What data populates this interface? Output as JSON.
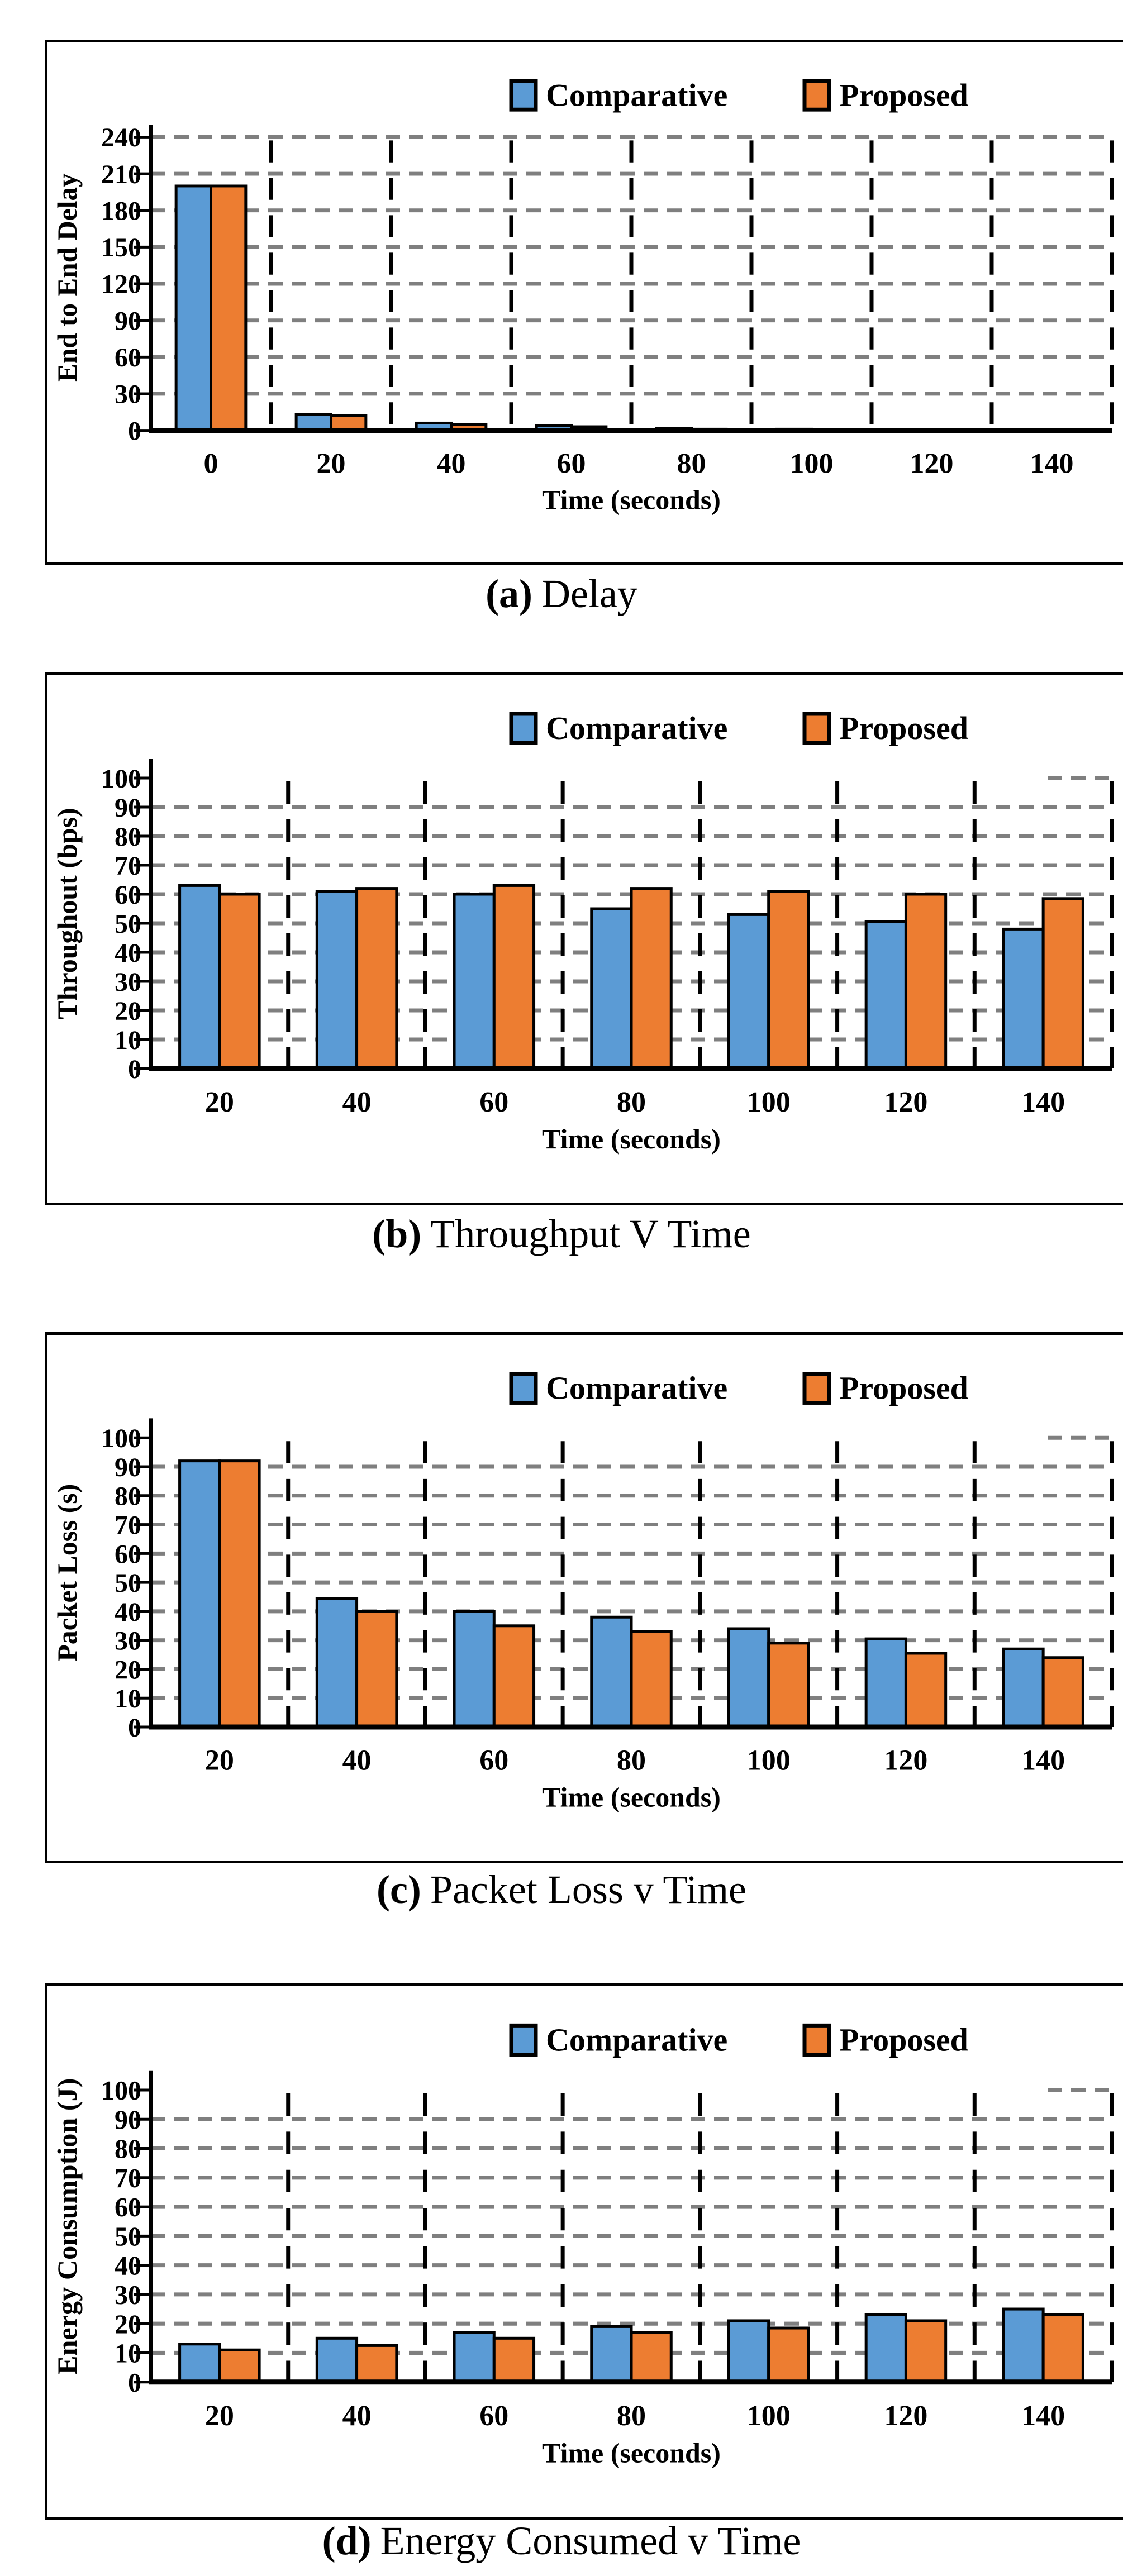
{
  "colors": {
    "comparative": "#5B9BD5",
    "proposed": "#ED7D31",
    "gridline": "#7F7F7F",
    "axis": "#000000",
    "bar_outline": "#000000"
  },
  "legend": [
    "Comparative",
    "Proposed"
  ],
  "chart_data": [
    {
      "type": "bar",
      "caption": {
        "prefix": "(a)",
        "text": "Delay"
      },
      "ylabel": "End to End Delay",
      "xlabel": "Time (seconds)",
      "categories": [
        "0",
        "20",
        "40",
        "60",
        "80",
        "100",
        "120",
        "140"
      ],
      "series": [
        {
          "name": "Comparative",
          "values": [
            200,
            13,
            6,
            4,
            1.5,
            1,
            0.8,
            0.8
          ]
        },
        {
          "name": "Proposed",
          "values": [
            200,
            12,
            5,
            3,
            1,
            0.8,
            0.6,
            0.6
          ]
        }
      ],
      "ylim": [
        0,
        240
      ],
      "ytick_step": 30,
      "grid": "dashed",
      "legend_position": "top",
      "top_gridline_full": true
    },
    {
      "type": "bar",
      "caption": {
        "prefix": "(b)",
        "text": "Throughput V Time"
      },
      "ylabel": "Throughout (bps)",
      "xlabel": "Time (seconds)",
      "categories": [
        "20",
        "40",
        "60",
        "80",
        "100",
        "120",
        "140"
      ],
      "series": [
        {
          "name": "Comparative",
          "values": [
            63,
            61,
            60,
            55,
            53,
            50.5,
            48
          ]
        },
        {
          "name": "Proposed",
          "values": [
            60,
            62,
            63,
            62,
            61,
            60,
            58.5
          ]
        }
      ],
      "ylim": [
        0,
        100
      ],
      "ytick_step": 10,
      "grid": "dashed",
      "legend_position": "top",
      "top_gridline_full": false
    },
    {
      "type": "bar",
      "caption": {
        "prefix": "(c)",
        "text": "Packet Loss v Time"
      },
      "ylabel": "Packet Loss (s)",
      "xlabel": "Time (seconds)",
      "categories": [
        "20",
        "40",
        "60",
        "80",
        "100",
        "120",
        "140"
      ],
      "series": [
        {
          "name": "Comparative",
          "values": [
            92,
            44.5,
            40,
            38,
            34,
            30.5,
            27
          ]
        },
        {
          "name": "Proposed",
          "values": [
            92,
            40,
            35,
            33,
            29,
            25.5,
            24
          ]
        }
      ],
      "ylim": [
        0,
        100
      ],
      "ytick_step": 10,
      "grid": "dashed",
      "legend_position": "top",
      "top_gridline_full": false
    },
    {
      "type": "bar",
      "caption": {
        "prefix": "(d)",
        "text": "Energy Consumed v Time"
      },
      "ylabel": "Energy Consumption (J)",
      "xlabel": "Time (seconds)",
      "categories": [
        "20",
        "40",
        "60",
        "80",
        "100",
        "120",
        "140"
      ],
      "series": [
        {
          "name": "Comparative",
          "values": [
            13,
            15,
            17,
            19,
            21,
            23,
            25
          ]
        },
        {
          "name": "Proposed",
          "values": [
            11,
            12.5,
            15,
            17,
            18.5,
            21,
            23
          ]
        }
      ],
      "ylim": [
        0,
        100
      ],
      "ytick_step": 10,
      "grid": "dashed",
      "legend_position": "top",
      "top_gridline_full": false
    }
  ]
}
